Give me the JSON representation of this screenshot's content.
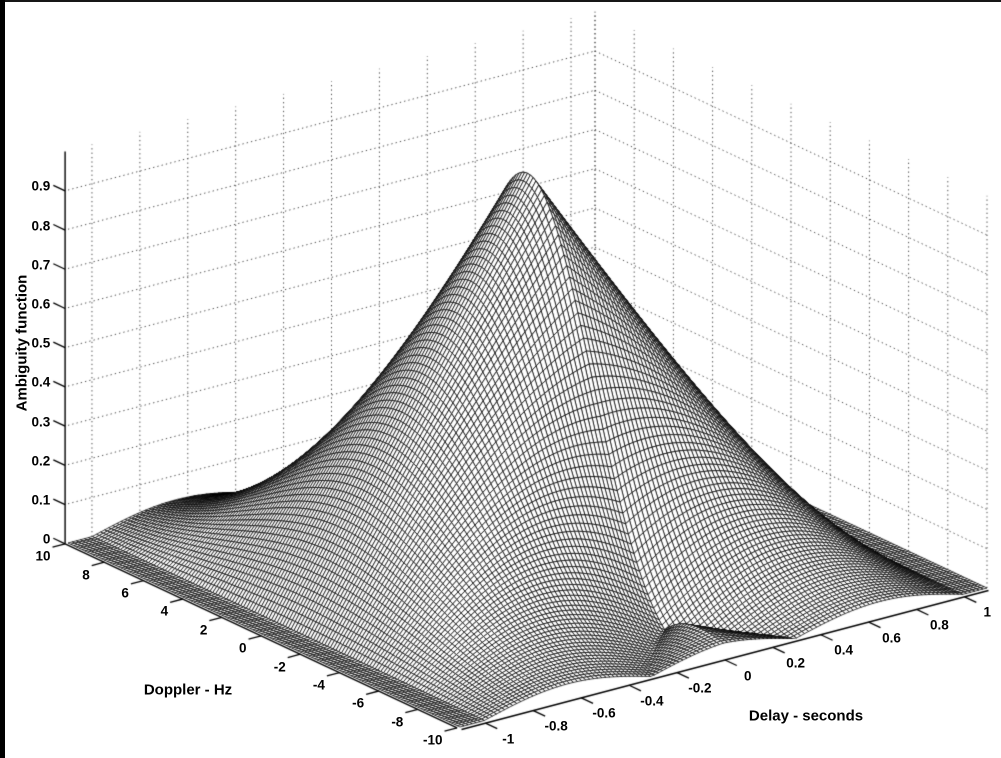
{
  "page": {
    "background": "#ffffff",
    "top_border_color": "#161616",
    "left_border_color": "#000000"
  },
  "labels": {
    "z_axis": "Ambiguity function",
    "x_axis": "Delay - seconds",
    "y_axis": "Doppler - Hz"
  },
  "chart_data": {
    "type": "surface",
    "subtype": "3d-hidden-line-mesh",
    "title": "",
    "xlabel": "Delay - seconds",
    "ylabel": "Doppler - Hz",
    "zlabel": "Ambiguity function",
    "xlim": [
      -1.1,
      1.1
    ],
    "ylim": [
      -10,
      10
    ],
    "zlim": [
      0,
      1
    ],
    "x_ticks": [
      -1,
      -0.8,
      -0.6,
      -0.4,
      -0.2,
      0,
      0.2,
      0.4,
      0.6,
      0.8,
      1
    ],
    "x_tick_labels": [
      "-1",
      "-0.8",
      "-0.6",
      "-0.4",
      "-0.2",
      "0",
      "0.2",
      "0.4",
      "0.6",
      "0.8",
      "1"
    ],
    "y_ticks": [
      10,
      8,
      6,
      4,
      2,
      0,
      -2,
      -4,
      -6,
      -8,
      -10
    ],
    "y_tick_labels": [
      "10",
      "8",
      "6",
      "4",
      "2",
      "0",
      "-2",
      "-4",
      "-6",
      "-8",
      "-10"
    ],
    "z_ticks": [
      0,
      0.1,
      0.2,
      0.3,
      0.4,
      0.5,
      0.6,
      0.7,
      0.8,
      0.9
    ],
    "z_tick_labels": [
      "0",
      "0.1",
      "0.2",
      "0.3",
      "0.4",
      "0.5",
      "0.6",
      "0.7",
      "0.8",
      "0.9"
    ],
    "grid": "dotted",
    "legend": "none",
    "view": {
      "azimuth_deg": -37.5,
      "elevation_deg": 30
    },
    "mesh_grid": {
      "n_delay": 131,
      "n_doppler": 141
    },
    "surface_model": {
      "description": "Normalized ambiguity surface |chi(delay,doppler)|: sharp triangular ridge in delay, sinc main lobe in doppler with null ring near 7 Hz, low sidelobe arcs, flat zero skirt to the axis limits",
      "peak": {
        "delay": 0,
        "doppler": 0,
        "value": 1.0
      },
      "delay_triangle_halfwidth_s": 1.0,
      "doppler_null_hz": 7,
      "doppler_window_hz": 7.5
    },
    "profiles": {
      "delay_cut_doppler0": {
        "delay_s": [
          0,
          0.1,
          0.2,
          0.3,
          0.4,
          0.5,
          0.6,
          0.7,
          0.8,
          0.9,
          1.0,
          1.1
        ],
        "value": [
          1.0,
          0.9,
          0.8,
          0.7,
          0.6,
          0.5,
          0.4,
          0.3,
          0.2,
          0.1,
          0.0,
          0.0
        ]
      },
      "doppler_cut_delay0": {
        "doppler_hz": [
          0,
          1,
          2,
          3,
          4,
          5,
          6,
          7,
          8,
          9,
          10
        ],
        "value": [
          1.0,
          0.95,
          0.811,
          0.617,
          0.409,
          0.223,
          0.085,
          0.0,
          0.039,
          0.046,
          0.037
        ]
      }
    },
    "colors": {
      "face": "#ffffff",
      "mesh_line": "#000000",
      "grid_line": "#4a4a4a",
      "axis_line": "#000000",
      "label": "#000000",
      "background": "#ffffff"
    }
  }
}
